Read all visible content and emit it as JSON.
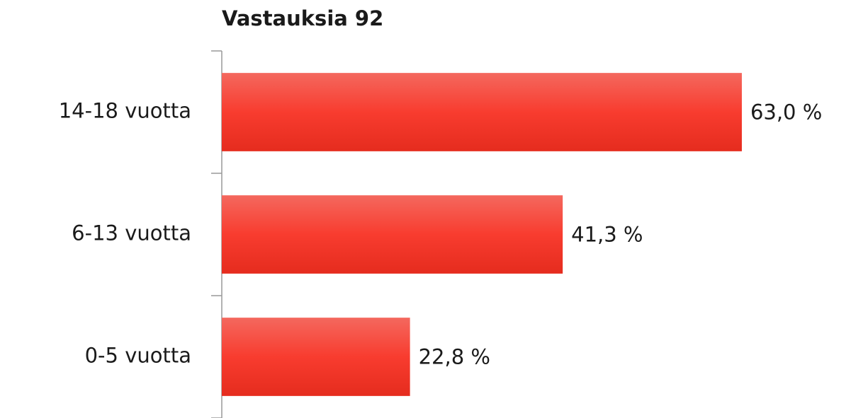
{
  "chart_data": {
    "type": "barh",
    "title": "Vastauksia 92",
    "categories": [
      "14-18 vuotta",
      "6-13 vuotta",
      "0-5 vuotta"
    ],
    "values": [
      63.0,
      41.3,
      22.8
    ],
    "value_labels": [
      "63,0 %",
      "41,3 %",
      "22,8 %"
    ],
    "color": "#ee3b2b",
    "xlim": [
      0,
      70
    ]
  }
}
